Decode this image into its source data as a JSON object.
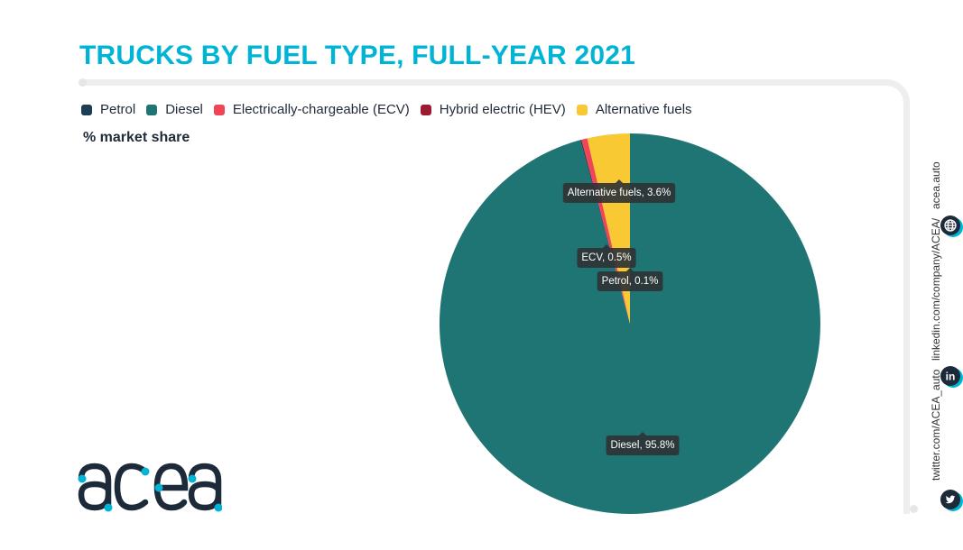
{
  "title": "TRUCKS BY FUEL TYPE, FULL-YEAR 2021",
  "subtitle": "% market share",
  "legend": [
    {
      "label": "Petrol",
      "color": "#1e3d52"
    },
    {
      "label": "Diesel",
      "color": "#1f7474"
    },
    {
      "label": "Electrically-chargeable (ECV)",
      "color": "#ef4557"
    },
    {
      "label": "Hybrid electric (HEV)",
      "color": "#9b1c31"
    },
    {
      "label": "Alternative fuels",
      "color": "#f9c934"
    }
  ],
  "chart_data": {
    "type": "pie",
    "title": "TRUCKS BY FUEL TYPE, FULL-YEAR 2021",
    "subtitle": "% market share",
    "legend_position": "top-left",
    "slices": [
      {
        "label": "Diesel",
        "value": 95.8,
        "color": "#1f7474",
        "data_label": "Diesel, 95.8%"
      },
      {
        "label": "Petrol",
        "value": 0.1,
        "color": "#1e3d52",
        "data_label": "Petrol, 0.1%"
      },
      {
        "label": "ECV",
        "value": 0.5,
        "color": "#ef4557",
        "data_label": "ECV, 0.5%"
      },
      {
        "label": "Alternative fuels",
        "value": 3.6,
        "color": "#f9c934",
        "data_label": "Alternative fuels, 3.6%"
      }
    ]
  },
  "social": {
    "website": "acea.auto",
    "linkedin": "linkedin.com/company/ACEA/",
    "twitter": "twitter.com/ACEA_auto"
  },
  "logo_text": "acea"
}
